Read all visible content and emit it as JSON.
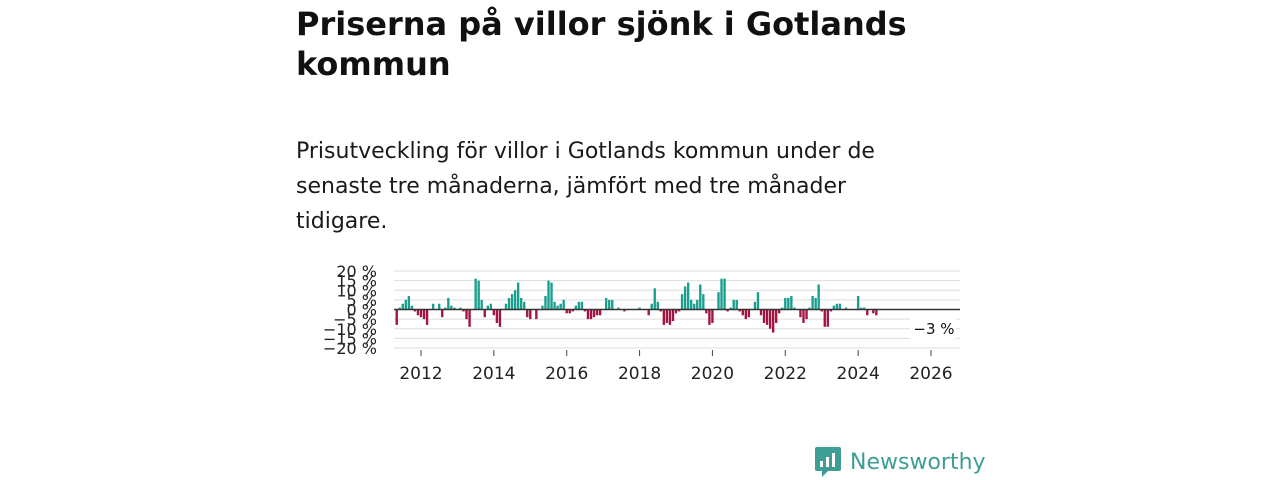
{
  "title": "Priserna på villor sjönk i Gotlands kommun",
  "subtitle": "Prisutveckling för villor i Gotlands kommun under de senaste tre månaderna, jämfört med tre månader tidigare.",
  "brand": {
    "name": "Newsworthy",
    "logo_icon": "bar-chart-speech-icon"
  },
  "colors": {
    "positive": "#1a9e8f",
    "negative": "#a3133f",
    "grid": "#dddddd",
    "zero_line": "#333333",
    "brand": "#3f9e94"
  },
  "chart_data": {
    "type": "bar",
    "title": "",
    "xlabel": "",
    "ylabel": "",
    "ylim": [
      -20,
      20
    ],
    "y_ticks": [
      20,
      15,
      10,
      5,
      0,
      -5,
      -10,
      -15,
      -20
    ],
    "y_tick_labels": [
      "20 %",
      "15 %",
      "10 %",
      "5 %",
      "0 %",
      "−5 %",
      "−10 %",
      "−15 %",
      "−20 %"
    ],
    "x_tick_labels": [
      "2012",
      "2014",
      "2016",
      "2018",
      "2020",
      "2022",
      "2024",
      "2026"
    ],
    "x_start_year": 2011,
    "x_start_month": 5,
    "last_value_label": "−3 %",
    "values": [
      -8,
      1,
      3,
      5,
      7,
      2,
      -1,
      -3,
      -4,
      -5,
      -8,
      0,
      3,
      0,
      3,
      -4,
      1,
      6,
      2,
      1,
      0,
      1,
      -1,
      -5,
      -9,
      0,
      16,
      15,
      5,
      -4,
      2,
      3,
      -3,
      -7,
      -9,
      0,
      3,
      6,
      8,
      10,
      14,
      6,
      4,
      -4,
      -5,
      0,
      -5,
      0,
      2,
      7,
      15,
      14,
      4,
      2,
      3,
      5,
      -2,
      -2,
      -1,
      2,
      4,
      4,
      -1,
      -5,
      -5,
      -4,
      -3,
      -3,
      0,
      6,
      5,
      5,
      0,
      1,
      0,
      -1,
      0,
      0,
      0,
      0,
      1,
      0,
      0,
      -3,
      3,
      11,
      4,
      -1,
      -8,
      -7,
      -8,
      -6,
      -2,
      -1,
      8,
      12,
      14,
      5,
      3,
      5,
      13,
      8,
      -2,
      -8,
      -7,
      0,
      9,
      16,
      16,
      -1,
      1,
      5,
      5,
      -1,
      -3,
      -5,
      -4,
      0,
      4,
      9,
      -3,
      -7,
      -8,
      -10,
      -12,
      -7,
      -2,
      1,
      6,
      6,
      7,
      1,
      0,
      -4,
      -7,
      -5,
      1,
      7,
      6,
      13,
      -1,
      -9,
      -9,
      -1,
      2,
      3,
      3,
      0,
      1,
      0,
      0,
      0,
      7,
      1,
      1,
      -3,
      0,
      -2,
      -3
    ]
  }
}
